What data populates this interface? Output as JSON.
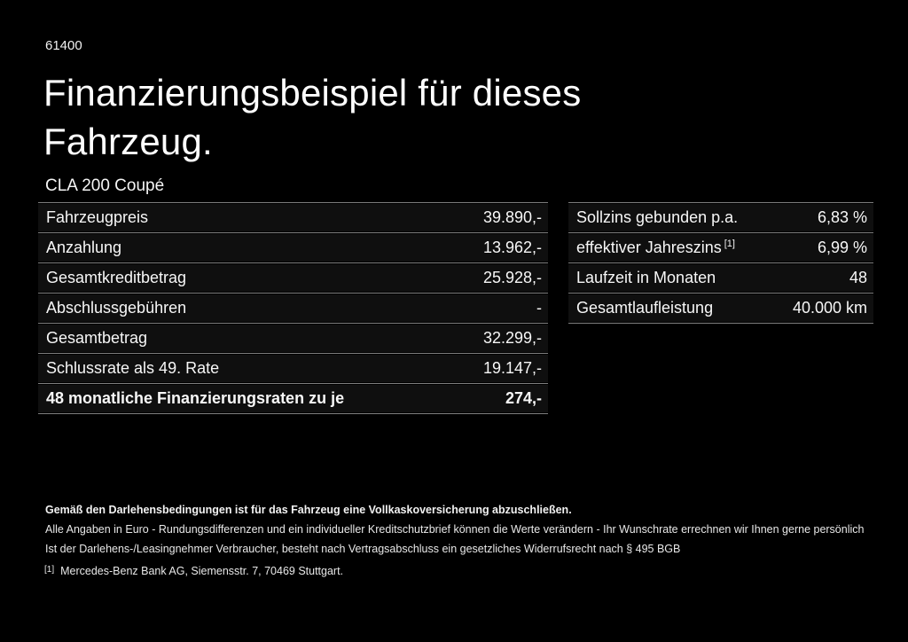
{
  "page": {
    "ref_id": "61400",
    "title_line1": "Finanzierungsbeispiel für dieses",
    "title_line2": "Fahrzeug.",
    "model": "CLA 200 Coupé"
  },
  "finance_table": {
    "rows": [
      {
        "label": "Fahrzeugpreis",
        "value": "39.890,-"
      },
      {
        "label": "Anzahlung",
        "value": "13.962,-"
      },
      {
        "label": "Gesamtkreditbetrag",
        "value": "25.928,-"
      },
      {
        "label": "Abschlussgebühren",
        "value": "-"
      },
      {
        "label": "Gesamtbetrag",
        "value": "32.299,-"
      },
      {
        "label": "Schlussrate als 49. Rate",
        "value": "19.147,-"
      },
      {
        "label": "48 monatliche Finanzierungsraten zu je",
        "value": "274,-"
      }
    ]
  },
  "conditions_table": {
    "rows": [
      {
        "label": "Sollzins gebunden p.a.",
        "value": "6,83 %"
      },
      {
        "label": "effektiver Jahreszins",
        "label_superscript": "[1]",
        "value": "6,99 %"
      },
      {
        "label": "Laufzeit in Monaten",
        "value": "48"
      },
      {
        "label": "Gesamtlaufleistung",
        "value": "40.000 km"
      }
    ]
  },
  "legal": {
    "line1": "Gemäß den Darlehensbedingungen ist für das Fahrzeug eine Vollkaskoversicherung abzuschließen.",
    "line2": "Alle Angaben in Euro - Rundungsdifferenzen und ein individueller Kreditschutzbrief können die Werte verändern - Ihr Wunschrate errechnen wir Ihnen gerne persönlich",
    "line3": "Ist der Darlehens-/Leasingnehmer Verbraucher, besteht nach Vertragsabschluss ein gesetzliches Widerrufsrecht nach § 495 BGB"
  },
  "footnote": {
    "marker": "[1]",
    "text": "Mercedes-Benz Bank AG, Siemensstr. 7, 70469 Stuttgart."
  },
  "colors": {
    "background": "#000000",
    "row_background": "#0f0f0f",
    "divider": "#7e7e7e",
    "text": "#ffffff"
  }
}
